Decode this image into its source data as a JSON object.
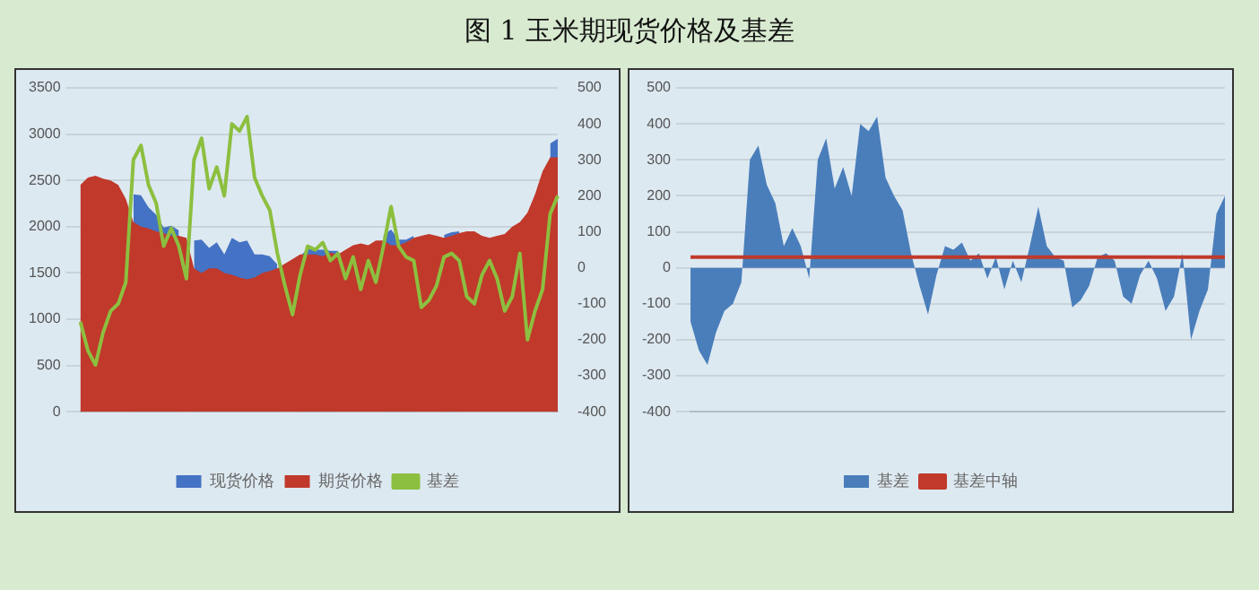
{
  "chart_data": [
    {
      "type": "area",
      "title": "图 1  玉米期现货价格及基差",
      "categories": [
        null,
        null,
        null,
        null,
        null,
        null,
        null,
        null,
        null,
        null,
        null,
        null,
        null,
        null,
        null,
        null,
        null,
        null,
        null,
        null,
        null,
        null,
        null,
        null,
        null,
        null,
        null,
        null,
        null,
        null,
        null,
        null,
        null,
        null,
        null,
        null,
        null,
        null,
        null,
        null,
        null,
        null,
        null,
        null,
        null,
        null,
        null,
        null,
        null,
        null,
        null,
        null,
        null,
        null,
        null,
        null,
        null,
        null,
        null,
        null,
        null,
        null,
        null,
        null
      ],
      "series": [
        {
          "name": "现货价格",
          "type": "area",
          "color": "#4472c4",
          "values": [
            null,
            null,
            null,
            null,
            null,
            null,
            null,
            2350,
            2340,
            2210,
            2130,
            1990,
            2010,
            1960,
            null,
            1850,
            1860,
            1770,
            1830,
            1700,
            1880,
            1830,
            1850,
            1700,
            1700,
            1680,
            1590,
            null,
            null,
            1680,
            1760,
            1750,
            1750,
            1740,
            1740,
            null,
            null,
            null,
            null,
            null,
            1910,
            1970,
            1860,
            1860,
            1900,
            null,
            null,
            null,
            1910,
            1940,
            1950,
            null,
            null,
            null,
            null,
            null,
            null,
            null,
            null,
            null,
            null,
            null,
            2900,
            2950
          ]
        },
        {
          "name": "期货价格",
          "type": "area",
          "color": "#c0392b",
          "values": [
            2450,
            2530,
            2550,
            2520,
            2500,
            2450,
            2300,
            2050,
            2000,
            1980,
            1950,
            1930,
            1900,
            1900,
            1880,
            1550,
            1500,
            1550,
            1550,
            1500,
            1480,
            1450,
            1430,
            1450,
            1500,
            1520,
            1550,
            1600,
            1650,
            1700,
            1700,
            1700,
            1680,
            1720,
            1700,
            1750,
            1800,
            1820,
            1800,
            1850,
            1850,
            1800,
            1800,
            1830,
            1880,
            1900,
            1920,
            1900,
            1880,
            1900,
            1930,
            1950,
            1950,
            1900,
            1880,
            1900,
            1920,
            2000,
            2050,
            2150,
            2350,
            2600,
            2750,
            2750
          ]
        },
        {
          "name": "基差",
          "type": "line",
          "axis": "y2",
          "color": "#8cbf3f",
          "values": [
            -150,
            -230,
            -270,
            -180,
            -120,
            -100,
            -40,
            300,
            340,
            230,
            180,
            60,
            110,
            60,
            -30,
            300,
            360,
            220,
            280,
            200,
            400,
            380,
            420,
            250,
            200,
            160,
            40,
            -50,
            -130,
            -20,
            60,
            50,
            70,
            20,
            40,
            -30,
            30,
            -60,
            20,
            -40,
            60,
            170,
            60,
            30,
            20,
            -110,
            -90,
            -50,
            30,
            40,
            20,
            -80,
            -100,
            -20,
            20,
            -30,
            -120,
            -80,
            40,
            -200,
            -120,
            -60,
            150,
            200
          ]
        }
      ],
      "ylim": [
        0,
        3500
      ],
      "yticks": [
        0,
        500,
        1000,
        1500,
        2000,
        2500,
        3000,
        3500
      ],
      "y2lim": [
        -400,
        500
      ],
      "y2ticks": [
        -400,
        -300,
        -200,
        -100,
        0,
        100,
        200,
        300,
        400,
        500
      ],
      "grid": "y",
      "legend": "bottom",
      "marker": "none"
    },
    {
      "type": "area",
      "categories": [
        null,
        null,
        null,
        null,
        null,
        null,
        null,
        null,
        null,
        null,
        null,
        null,
        null,
        null,
        null,
        null,
        null,
        null,
        null,
        null,
        null,
        null,
        null,
        null,
        null,
        null,
        null,
        null,
        null,
        null,
        null,
        null,
        null,
        null,
        null,
        null,
        null,
        null,
        null,
        null,
        null,
        null,
        null,
        null,
        null,
        null,
        null,
        null,
        null,
        null,
        null,
        null,
        null,
        null,
        null,
        null,
        null,
        null,
        null,
        null,
        null,
        null,
        null,
        null
      ],
      "series": [
        {
          "name": "基差",
          "type": "area",
          "color": "#4a7ebb",
          "values": [
            -150,
            -230,
            -270,
            -180,
            -120,
            -100,
            -40,
            300,
            340,
            230,
            180,
            60,
            110,
            60,
            -30,
            300,
            360,
            220,
            280,
            200,
            400,
            380,
            420,
            250,
            200,
            160,
            40,
            -50,
            -130,
            -20,
            60,
            50,
            70,
            20,
            40,
            -30,
            30,
            -60,
            20,
            -40,
            60,
            170,
            60,
            30,
            20,
            -110,
            -90,
            -50,
            30,
            40,
            20,
            -80,
            -100,
            -20,
            20,
            -30,
            -120,
            -80,
            40,
            -200,
            -120,
            -60,
            150,
            200
          ]
        },
        {
          "name": "基差中轴",
          "type": "line",
          "color": "#c0392b",
          "values": [
            30,
            30,
            30,
            30,
            30,
            30,
            30,
            30,
            30,
            30,
            30,
            30,
            30,
            30,
            30,
            30,
            30,
            30,
            30,
            30,
            30,
            30,
            30,
            30,
            30,
            30,
            30,
            30,
            30,
            30,
            30,
            30,
            30,
            30,
            30,
            30,
            30,
            30,
            30,
            30,
            30,
            30,
            30,
            30,
            30,
            30,
            30,
            30,
            30,
            30,
            30,
            30,
            30,
            30,
            30,
            30,
            30,
            30,
            30,
            30,
            30,
            30,
            30,
            30
          ]
        }
      ],
      "ylim": [
        -400,
        500
      ],
      "yticks": [
        -400,
        -300,
        -200,
        -100,
        0,
        100,
        200,
        300,
        400,
        500
      ],
      "grid": "y",
      "legend": "bottom",
      "marker": "none"
    }
  ]
}
